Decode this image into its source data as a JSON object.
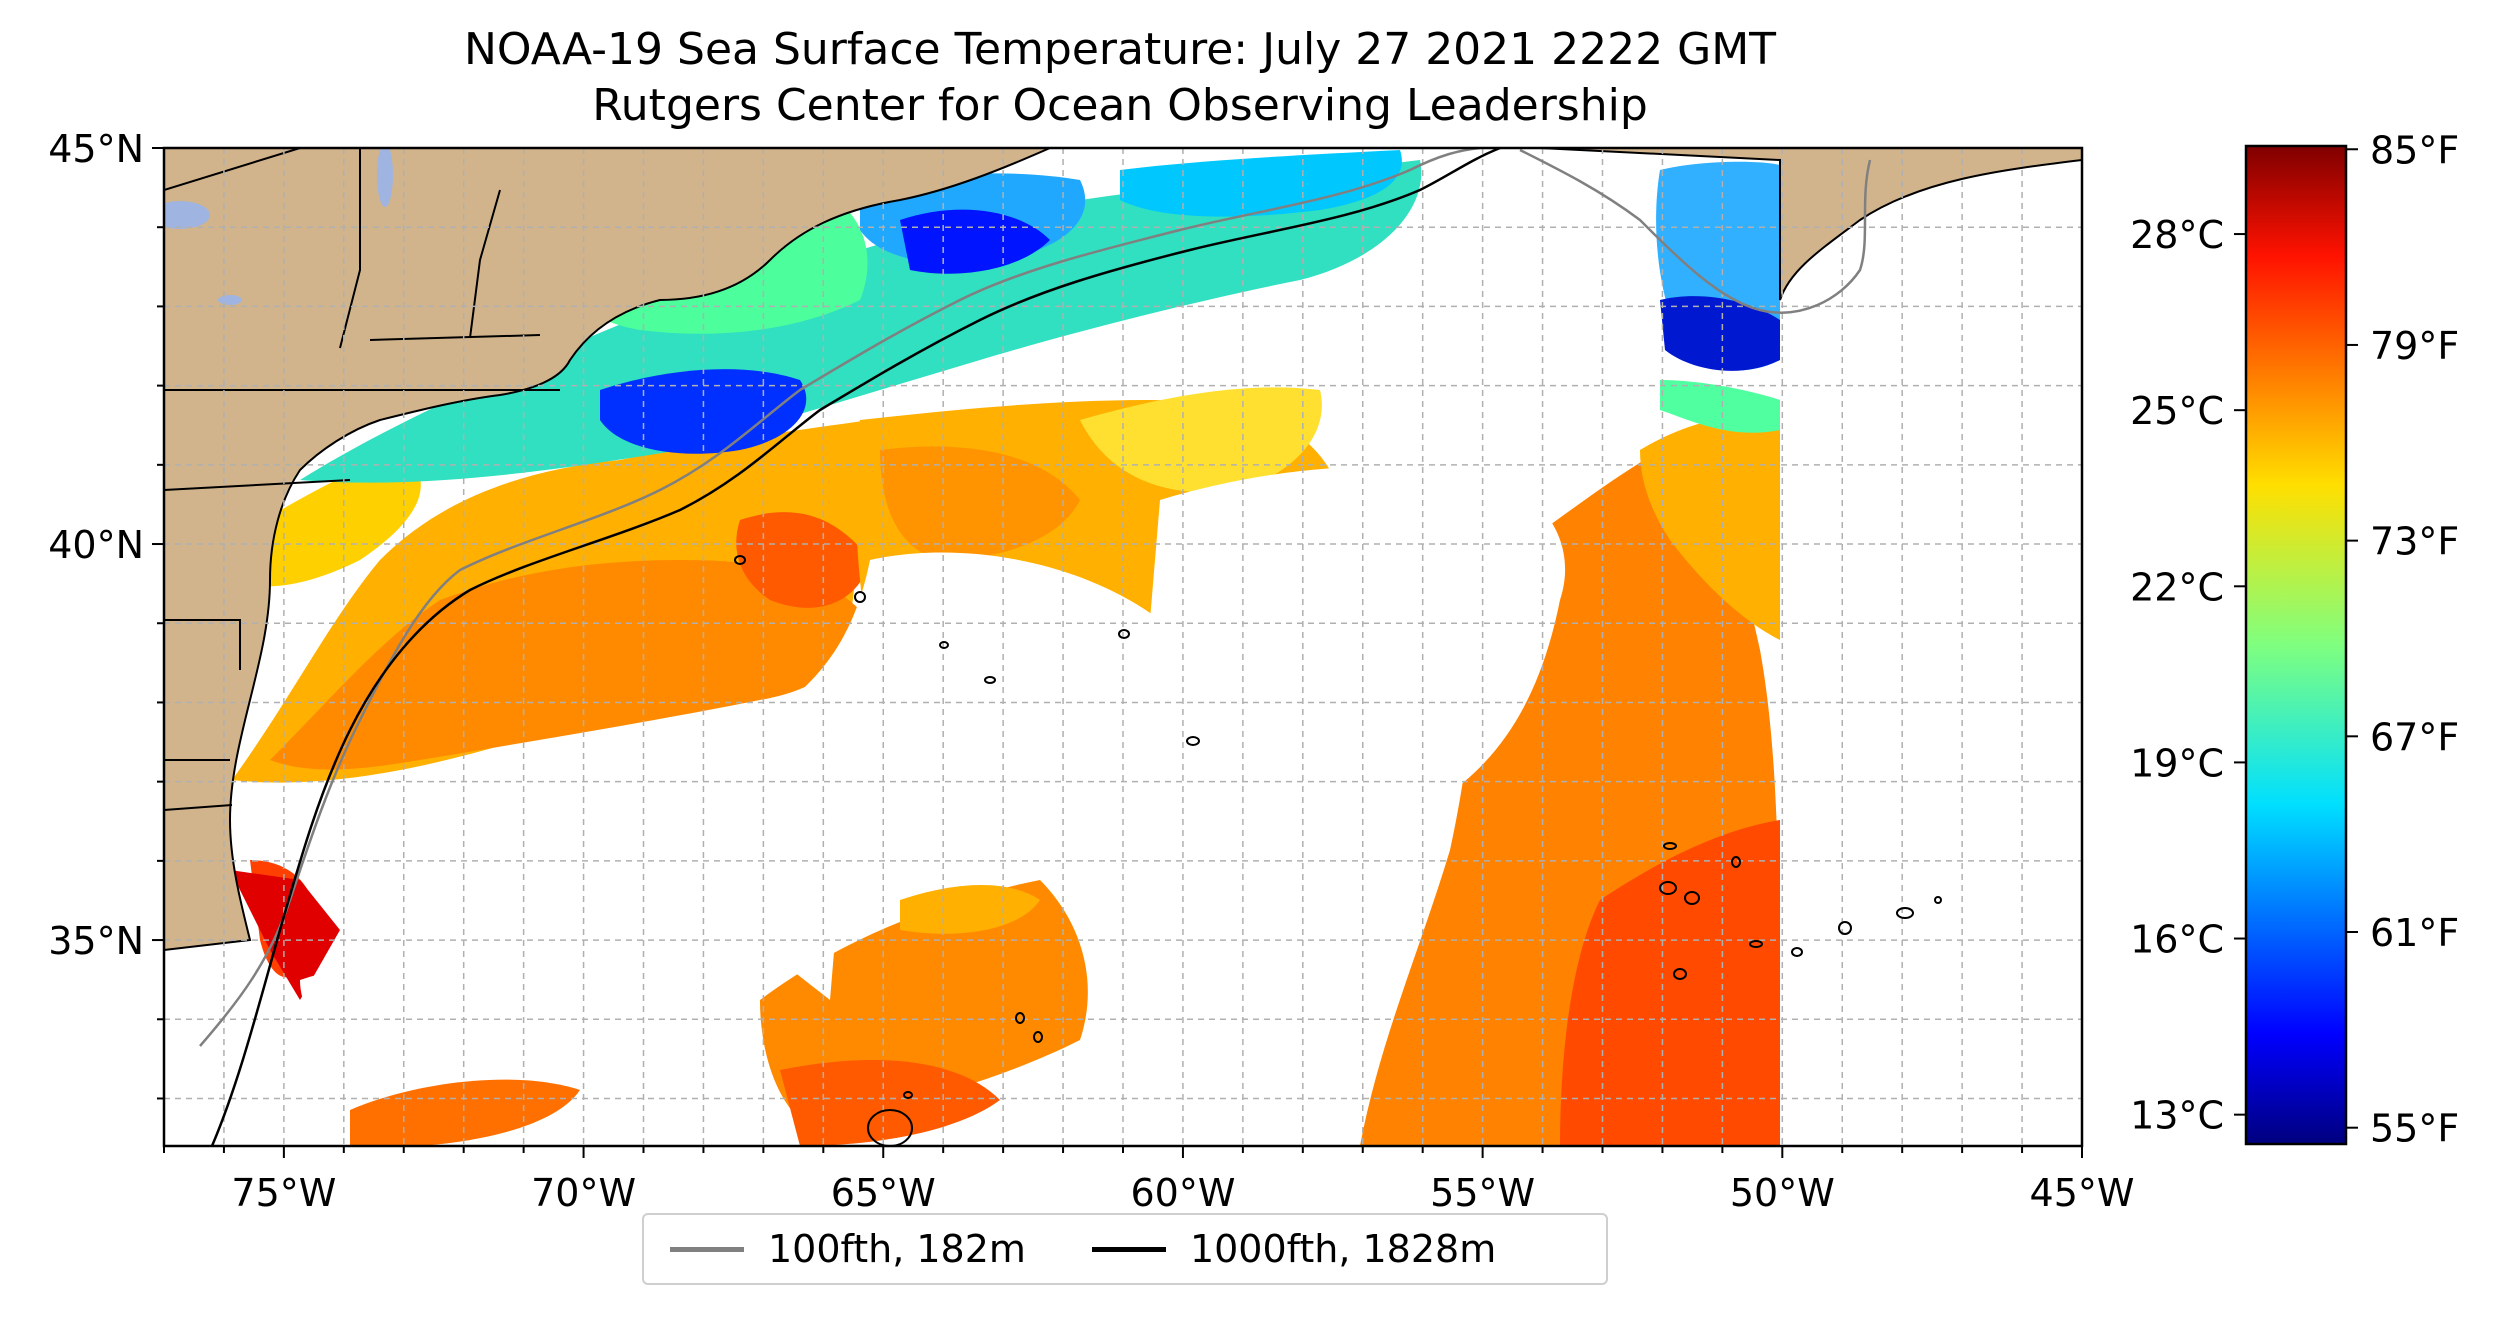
{
  "title": {
    "line1": "NOAA-19 Sea Surface Temperature: July 27 2021 2222 GMT",
    "line2": "Rutgers Center for Ocean Observing Leadership"
  },
  "map": {
    "lon_range": [
      -77,
      -45
    ],
    "lat_range": [
      32.4,
      45
    ],
    "lon_ticks": [
      {
        "value": -75,
        "label": "75°W"
      },
      {
        "value": -70,
        "label": "70°W"
      },
      {
        "value": -65,
        "label": "65°W"
      },
      {
        "value": -60,
        "label": "60°W"
      },
      {
        "value": -55,
        "label": "55°W"
      },
      {
        "value": -50,
        "label": "50°W"
      },
      {
        "value": -45,
        "label": "45°W"
      }
    ],
    "lat_ticks": [
      {
        "value": 45,
        "label": "45°N"
      },
      {
        "value": 40,
        "label": "40°N"
      },
      {
        "value": 35,
        "label": "35°N"
      }
    ],
    "grid": true,
    "colors": {
      "land": "#d2b48c",
      "lakes": "#9fb4e0",
      "grid": "#b0b0b0",
      "isobath_100fth": "#808080",
      "isobath_1000fth": "#000000",
      "missing": "#ffffff"
    }
  },
  "colorbar": {
    "colormap": "jet",
    "range_celsius": [
      12.5,
      29.5
    ],
    "celsius_ticks": [
      {
        "value": 28,
        "label": "28°C"
      },
      {
        "value": 25,
        "label": "25°C"
      },
      {
        "value": 22,
        "label": "22°C"
      },
      {
        "value": 19,
        "label": "19°C"
      },
      {
        "value": 16,
        "label": "16°C"
      },
      {
        "value": 13,
        "label": "13°C"
      }
    ],
    "fahrenheit_ticks": [
      {
        "value": 85,
        "label": "85°F"
      },
      {
        "value": 79,
        "label": "79°F"
      },
      {
        "value": 73,
        "label": "73°F"
      },
      {
        "value": 67,
        "label": "67°F"
      },
      {
        "value": 61,
        "label": "61°F"
      },
      {
        "value": 55,
        "label": "55°F"
      }
    ]
  },
  "legend": {
    "items": [
      {
        "label": "100fth, 182m",
        "color": "#808080"
      },
      {
        "label": "1000fth, 1828m",
        "color": "#000000"
      }
    ]
  }
}
